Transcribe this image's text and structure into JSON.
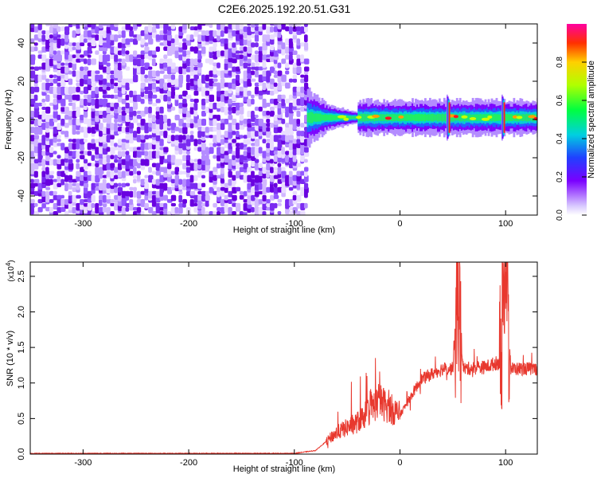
{
  "title": "C2E6.2025.192.20.51.G31",
  "colors": {
    "snr_line": "#e8382e",
    "spectrogram_low": "#6a00ff",
    "spectrogram_mid": "#00e080",
    "spectrogram_high": "#ff1010"
  },
  "chart_data": [
    {
      "type": "heatmap",
      "title": "",
      "xlabel": "Height of straight line (km)",
      "ylabel": "Frequency (Hz)",
      "xlim": [
        -350,
        130
      ],
      "ylim": [
        -50,
        50
      ],
      "x_ticks": [
        "-300",
        "-200",
        "-100",
        "0",
        "100"
      ],
      "y_ticks": [
        "-40",
        "-20",
        "0",
        "20",
        "40"
      ],
      "noise_region_x": [
        -350,
        -88
      ],
      "signal_band_frequency": 1,
      "colorbar": {
        "label": "Normalized spectral amplitude",
        "range": [
          0,
          1
        ],
        "ticks": [
          "0.0",
          "0.2",
          "0.4",
          "0.6",
          "0.8"
        ]
      }
    },
    {
      "type": "line",
      "title": "",
      "xlabel": "Height of straight line (km)",
      "ylabel": "SNR (10 * v/v)",
      "y_multiplier": "(x10",
      "y_multiplier_exp": "4",
      "xlim": [
        -350,
        130
      ],
      "ylim": [
        0,
        2.7
      ],
      "x_ticks": [
        "-300",
        "-200",
        "-100",
        "0",
        "100"
      ],
      "y_ticks": [
        "0.0",
        "0.5",
        "1.0",
        "1.5",
        "2.0",
        "2.5"
      ],
      "series": [
        {
          "x": [
            -350,
            -300,
            -200,
            -100,
            -80,
            -60,
            -40,
            -20,
            0,
            20,
            40,
            50,
            55,
            60,
            80,
            95,
            100,
            105,
            130
          ],
          "y": [
            0.01,
            0.01,
            0.01,
            0.01,
            0.05,
            0.3,
            0.45,
            0.75,
            0.55,
            1.05,
            1.2,
            1.2,
            2.3,
            1.2,
            1.22,
            1.3,
            2.65,
            1.2,
            1.2
          ]
        }
      ]
    }
  ]
}
